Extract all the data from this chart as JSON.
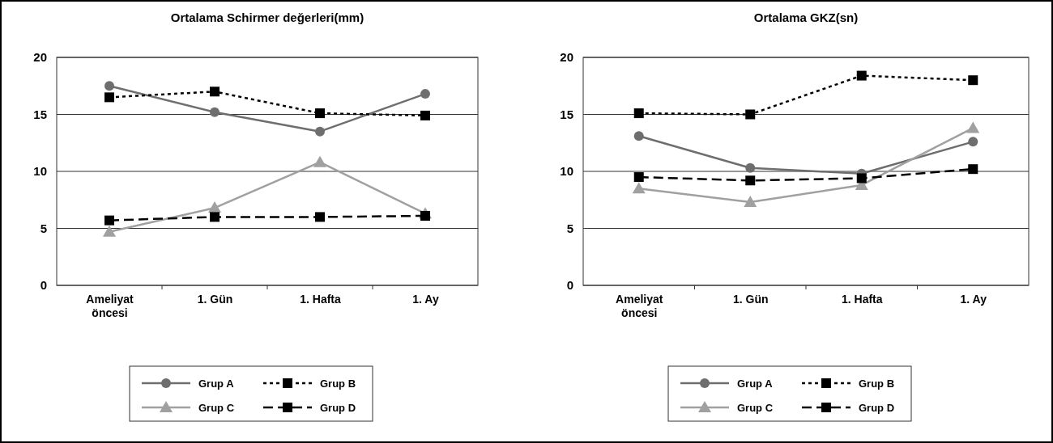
{
  "chart_data": [
    {
      "type": "line",
      "title": "Ortalama Schirmer değerleri(mm)",
      "categories": [
        "Ameliyat öncesi",
        "1. Gün",
        "1. Hafta",
        "1. Ay"
      ],
      "ylim": [
        0,
        20
      ],
      "yticks": [
        0,
        5,
        10,
        15,
        20
      ],
      "grid": "y",
      "legend": "bottom",
      "series": [
        {
          "name": "Grup A",
          "color": "#6e6e6e",
          "marker": "circle",
          "line_style": "solid",
          "values": [
            17.5,
            15.2,
            13.5,
            16.8
          ]
        },
        {
          "name": "Grup B",
          "color": "#000000",
          "marker": "square",
          "line_style": "dotted",
          "values": [
            16.5,
            17.0,
            15.1,
            14.9
          ]
        },
        {
          "name": "Grup C",
          "color": "#a0a0a0",
          "marker": "triangle",
          "line_style": "solid",
          "values": [
            4.7,
            6.8,
            10.8,
            6.3
          ]
        },
        {
          "name": "Grup D",
          "color": "#000000",
          "marker": "square",
          "line_style": "dashed",
          "values": [
            5.7,
            6.0,
            6.0,
            6.1
          ]
        }
      ]
    },
    {
      "type": "line",
      "title": "Ortalama GKZ(sn)",
      "categories": [
        "Ameliyat öncesi",
        "1. Gün",
        "1. Hafta",
        "1. Ay"
      ],
      "ylim": [
        0,
        20
      ],
      "yticks": [
        0,
        5,
        10,
        15,
        20
      ],
      "grid": "y",
      "legend": "bottom",
      "series": [
        {
          "name": "Grup A",
          "color": "#6e6e6e",
          "marker": "circle",
          "line_style": "solid",
          "values": [
            13.1,
            10.3,
            9.8,
            12.6
          ]
        },
        {
          "name": "Grup B",
          "color": "#000000",
          "marker": "square",
          "line_style": "dotted",
          "values": [
            15.1,
            15.0,
            18.4,
            18.0
          ]
        },
        {
          "name": "Grup C",
          "color": "#a0a0a0",
          "marker": "triangle",
          "line_style": "solid",
          "values": [
            8.5,
            7.3,
            8.8,
            13.8
          ]
        },
        {
          "name": "Grup D",
          "color": "#000000",
          "marker": "square",
          "line_style": "dashed",
          "values": [
            9.5,
            9.2,
            9.4,
            10.2
          ]
        }
      ]
    }
  ]
}
